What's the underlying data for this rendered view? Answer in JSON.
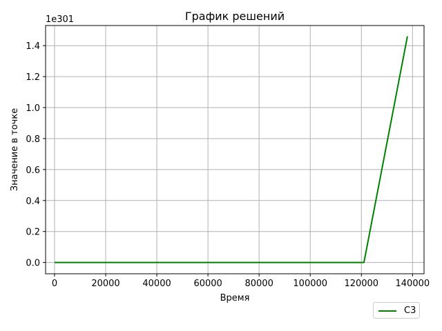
{
  "chart_data": {
    "type": "line",
    "title": "График решений",
    "xlabel": "Время",
    "ylabel": "Значение в точке",
    "y_offset_label": "1e301",
    "xlim": [
      -3500,
      144500
    ],
    "ylim": [
      -0.073,
      1.53
    ],
    "xticks": [
      0,
      20000,
      40000,
      60000,
      80000,
      100000,
      120000,
      140000
    ],
    "xtick_labels": [
      "0",
      "20000",
      "40000",
      "60000",
      "80000",
      "100000",
      "120000",
      "140000"
    ],
    "yticks": [
      0.0,
      0.2,
      0.4,
      0.6,
      0.8,
      1.0,
      1.2,
      1.4
    ],
    "ytick_labels": [
      "0.0",
      "0.2",
      "0.4",
      "0.6",
      "0.8",
      "1.0",
      "1.2",
      "1.4"
    ],
    "grid": true,
    "legend_position": "lower-right, outside plot",
    "series": [
      {
        "name": "C3",
        "color": "#008000",
        "x": [
          0,
          121000,
          138000
        ],
        "y": [
          0,
          0,
          1.46
        ]
      }
    ]
  }
}
